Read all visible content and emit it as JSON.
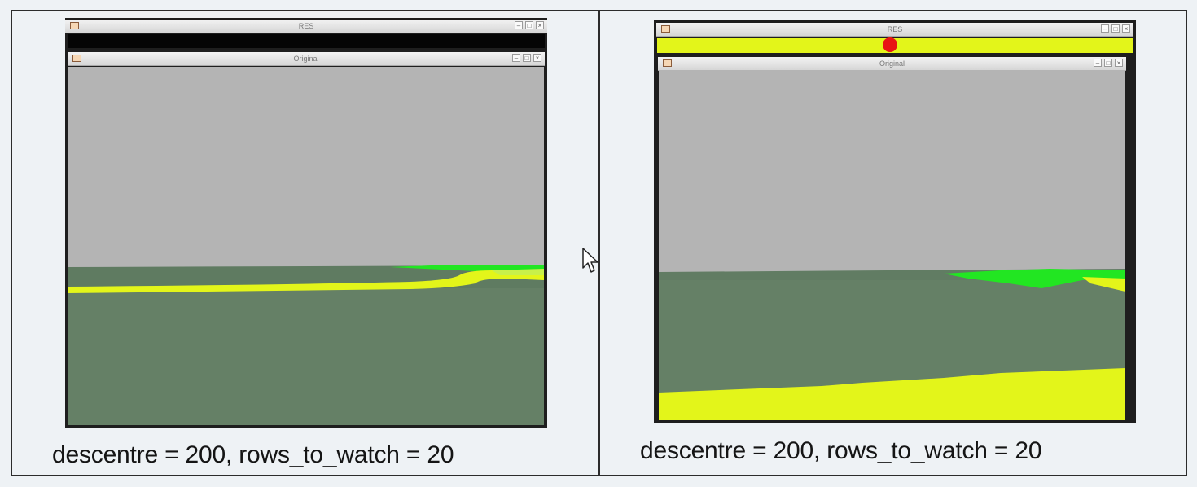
{
  "panels": [
    {
      "res_window": {
        "title": "RES",
        "state": "black"
      },
      "original_window": {
        "title": "Original"
      },
      "caption": "descentre = 200, rows_to_watch = 20"
    },
    {
      "res_window": {
        "title": "RES",
        "state": "yellow-with-red-dot"
      },
      "original_window": {
        "title": "Original"
      },
      "caption": "descentre = 200, rows_to_watch = 20"
    }
  ],
  "window_controls": {
    "minimize": "–",
    "maximize": "□",
    "close": "×"
  },
  "colors": {
    "sky": "#b4b4b4",
    "ground": "#658066",
    "yellow_line": "#e3f51a",
    "green_patch": "#22e622",
    "red_dot": "#e81414",
    "res_black": "#050505"
  },
  "icons": [
    "window-app-icon",
    "mouse-pointer-icon"
  ]
}
